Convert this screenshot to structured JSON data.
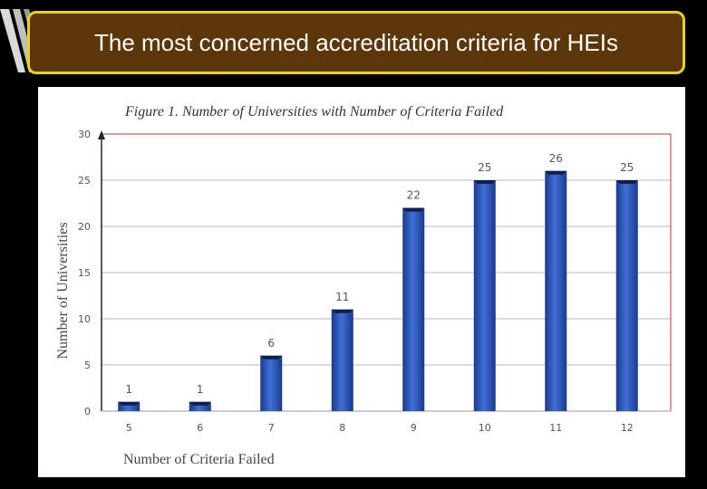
{
  "slide": {
    "title": "The most concerned accreditation criteria for HEIs"
  },
  "colors": {
    "background": "#000000",
    "banner_fill": "#5b3608",
    "banner_border": "#e8d21b",
    "bar": "#3f6fd6",
    "bar_dark": "#1a3a8c",
    "plot_border": "#c0392b",
    "grid": "#bbbbbb"
  },
  "chart_data": {
    "type": "bar",
    "title": "Figure 1. Number of Universities with Number of Criteria Failed",
    "xlabel": "Number of Criteria Failed",
    "ylabel": "Number of Universities",
    "categories": [
      "5",
      "6",
      "7",
      "8",
      "9",
      "10",
      "11",
      "12"
    ],
    "values": [
      1,
      1,
      6,
      11,
      22,
      25,
      26,
      25
    ],
    "ylim": [
      0,
      30
    ],
    "yticks": [
      0,
      5,
      10,
      15,
      20,
      25,
      30
    ],
    "grid": true,
    "data_labels": true
  }
}
